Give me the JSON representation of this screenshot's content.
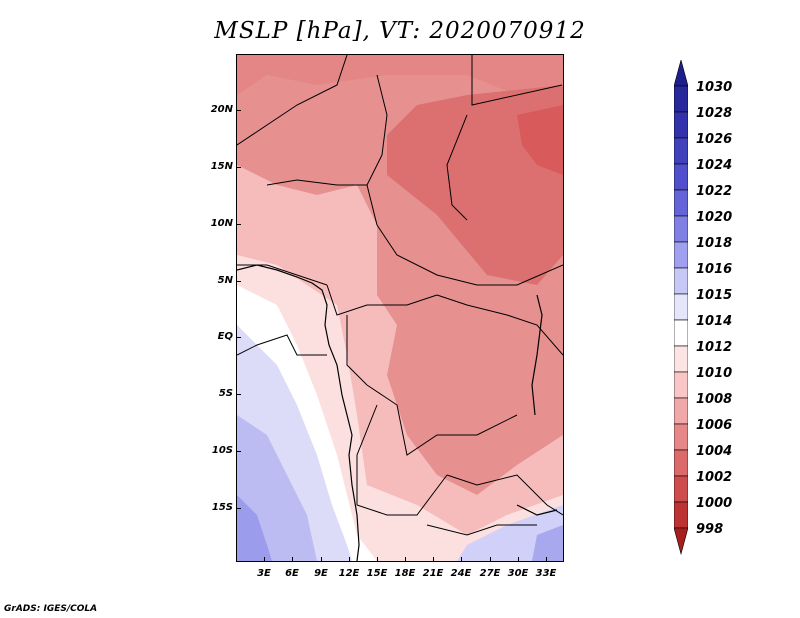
{
  "title": "MSLP [hPa], VT: 2020070912",
  "footer": "GrADS: IGES/COLA",
  "lat_labels": [
    "20N",
    "15N",
    "10N",
    "5N",
    "EQ",
    "5S",
    "10S",
    "15S"
  ],
  "lon_labels": [
    "3E",
    "6E",
    "9E",
    "12E",
    "15E",
    "18E",
    "21E",
    "24E",
    "27E",
    "30E",
    "33E"
  ],
  "colorbar": {
    "labels": [
      "1030",
      "1028",
      "1026",
      "1024",
      "1022",
      "1020",
      "1018",
      "1016",
      "1015",
      "1014",
      "1012",
      "1010",
      "1008",
      "1006",
      "1004",
      "1002",
      "1000",
      "998"
    ],
    "colors": [
      "#1e1e8c",
      "#28289c",
      "#3232ad",
      "#4141bd",
      "#5050cc",
      "#6464d8",
      "#8080e4",
      "#a0a0ee",
      "#c8c8f6",
      "#e6e6fb",
      "#ffffff",
      "#fde4e4",
      "#f8c6c6",
      "#f0a8a8",
      "#e68888",
      "#dc6a6a",
      "#cf4c4c",
      "#bd3232",
      "#a81e1e"
    ]
  }
}
